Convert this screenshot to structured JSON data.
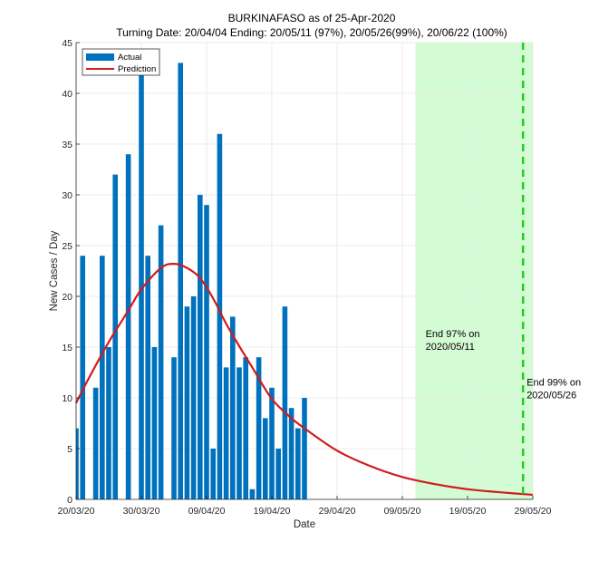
{
  "chart_data": {
    "type": "bar",
    "title": "BURKINAFASO as of 25-Apr-2020",
    "subtitle": "Turning Date: 20/04/04  Ending: 20/05/11 (97%), 20/05/26(99%), 20/06/22 (100%)",
    "xlabel": "Date",
    "ylabel": "New Cases / Day",
    "ylim": [
      0,
      45
    ],
    "yticks": [
      0,
      5,
      10,
      15,
      20,
      25,
      30,
      35,
      40,
      45
    ],
    "x_start_date": "20/03/20",
    "x_range_days": [
      0,
      70
    ],
    "xticks": [
      {
        "day": 0,
        "label": "20/03/20"
      },
      {
        "day": 10,
        "label": "30/03/20"
      },
      {
        "day": 20,
        "label": "09/04/20"
      },
      {
        "day": 30,
        "label": "19/04/20"
      },
      {
        "day": 40,
        "label": "29/04/20"
      },
      {
        "day": 50,
        "label": "09/05/20"
      },
      {
        "day": 60,
        "label": "19/05/20"
      },
      {
        "day": 70,
        "label": "29/05/20"
      }
    ],
    "grid": true,
    "legend": {
      "position": "top-left",
      "entries": [
        "Actual",
        "Prediction"
      ]
    },
    "series": [
      {
        "name": "Actual",
        "kind": "bar",
        "color": "#0072BD",
        "days": [
          0,
          1,
          2,
          3,
          4,
          5,
          6,
          7,
          8,
          9,
          10,
          11,
          12,
          13,
          14,
          15,
          16,
          17,
          18,
          19,
          20,
          21,
          22,
          23,
          24,
          25,
          26,
          27,
          28,
          29,
          30,
          31,
          32,
          33,
          34,
          35
        ],
        "values": [
          7,
          24,
          0,
          11,
          24,
          15,
          32,
          0,
          34,
          0,
          42,
          24,
          15,
          27,
          0,
          14,
          43,
          19,
          20,
          30,
          29,
          5,
          36,
          13,
          18,
          13,
          14,
          1,
          14,
          8,
          11,
          5,
          19,
          9,
          7,
          10
        ]
      },
      {
        "name": "Prediction",
        "kind": "line",
        "color": "#D01C1C",
        "days": [
          0,
          2,
          5,
          8,
          10,
          13,
          15,
          17,
          19,
          21,
          23,
          25,
          27,
          30,
          33,
          35,
          40,
          45,
          50,
          55,
          60,
          65,
          70
        ],
        "values": [
          9.5,
          12.0,
          15.5,
          18.6,
          20.7,
          22.8,
          23.2,
          22.8,
          21.8,
          19.8,
          17.3,
          15.1,
          13.0,
          9.9,
          8.0,
          7.0,
          4.8,
          3.3,
          2.2,
          1.5,
          1.0,
          0.7,
          0.45
        ]
      }
    ],
    "annotations": [
      {
        "kind": "shaded-region",
        "from_day": 52,
        "to_day": 70,
        "color": "#D4FCD4"
      },
      {
        "kind": "dashed-vline",
        "day": 68.5,
        "color": "#22CC22"
      },
      {
        "kind": "text",
        "day": 53,
        "value": 16,
        "lines": [
          "End 97% on",
          "2020/05/11"
        ]
      },
      {
        "kind": "text",
        "day": 68.5,
        "value": 11.2,
        "lines": [
          "End 99% on",
          "2020/05/26"
        ]
      }
    ]
  }
}
